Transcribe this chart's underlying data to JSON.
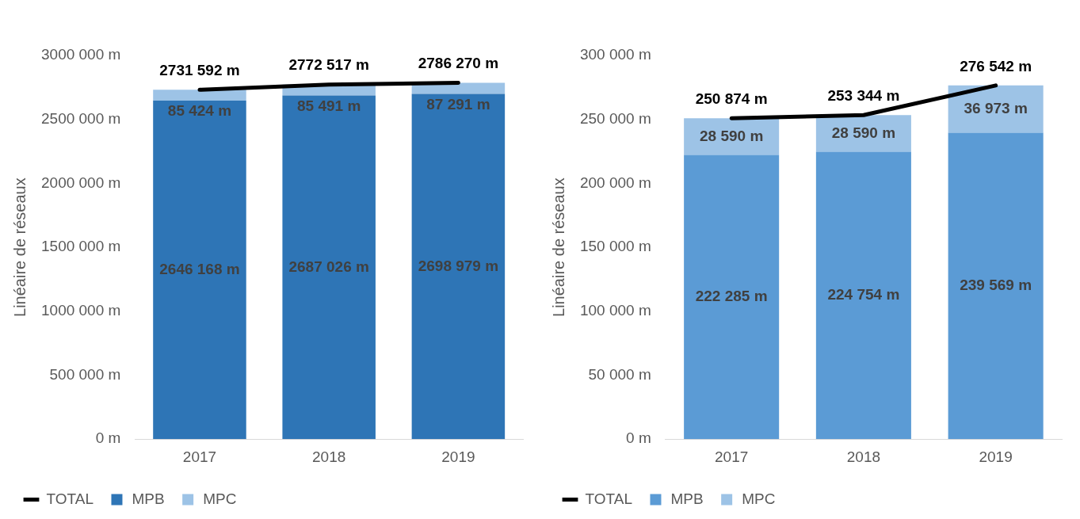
{
  "chart_data": [
    {
      "type": "bar",
      "stacked": true,
      "categories": [
        "2017",
        "2018",
        "2019"
      ],
      "ylabel": "Linéaire de réseaux",
      "ylim": [
        0,
        3000000
      ],
      "yticks": [
        {
          "value": 0,
          "label": "0 m"
        },
        {
          "value": 500000,
          "label": "500 000 m"
        },
        {
          "value": 1000000,
          "label": "1000 000 m"
        },
        {
          "value": 1500000,
          "label": "1500 000 m"
        },
        {
          "value": 2000000,
          "label": "2000 000 m"
        },
        {
          "value": 2500000,
          "label": "2500 000 m"
        },
        {
          "value": 3000000,
          "label": "3000 000 m"
        }
      ],
      "grid": false,
      "legend": "bottom",
      "series": [
        {
          "name": "MPB",
          "color": "#2e75b6",
          "values": [
            2646168,
            2687026,
            2698979
          ],
          "value_labels": [
            "2646 168 m",
            "2687 026 m",
            "2698 979 m"
          ]
        },
        {
          "name": "MPC",
          "color": "#9dc3e6",
          "values": [
            85424,
            85491,
            87291
          ],
          "value_labels": [
            "85 424 m",
            "85 491 m",
            "87 291 m"
          ]
        },
        {
          "name": "TOTAL",
          "type": "line",
          "color": "#000000",
          "marker": "none",
          "values": [
            2731592,
            2772517,
            2786270
          ],
          "value_labels": [
            "2731 592 m",
            "2772 517 m",
            "2786 270 m"
          ]
        }
      ]
    },
    {
      "type": "bar",
      "stacked": true,
      "categories": [
        "2017",
        "2018",
        "2019"
      ],
      "ylabel": "Linéaire de réseaux",
      "ylim": [
        0,
        300000
      ],
      "yticks": [
        {
          "value": 0,
          "label": "0 m"
        },
        {
          "value": 50000,
          "label": "50 000 m"
        },
        {
          "value": 100000,
          "label": "100 000 m"
        },
        {
          "value": 150000,
          "label": "150 000 m"
        },
        {
          "value": 200000,
          "label": "200 000 m"
        },
        {
          "value": 250000,
          "label": "250 000 m"
        },
        {
          "value": 300000,
          "label": "300 000 m"
        }
      ],
      "grid": false,
      "legend": "bottom",
      "series": [
        {
          "name": "MPB",
          "color": "#5b9bd5",
          "values": [
            222285,
            224754,
            239569
          ],
          "value_labels": [
            "222 285 m",
            "224 754 m",
            "239 569 m"
          ]
        },
        {
          "name": "MPC",
          "color": "#9dc3e6",
          "values": [
            28590,
            28590,
            36973
          ],
          "value_labels": [
            "28 590 m",
            "28 590 m",
            "36 973 m"
          ]
        },
        {
          "name": "TOTAL",
          "type": "line",
          "color": "#000000",
          "marker": "none",
          "values": [
            250874,
            253344,
            276542
          ],
          "value_labels": [
            "250 874 m",
            "253 344 m",
            "276 542 m"
          ]
        }
      ]
    }
  ]
}
